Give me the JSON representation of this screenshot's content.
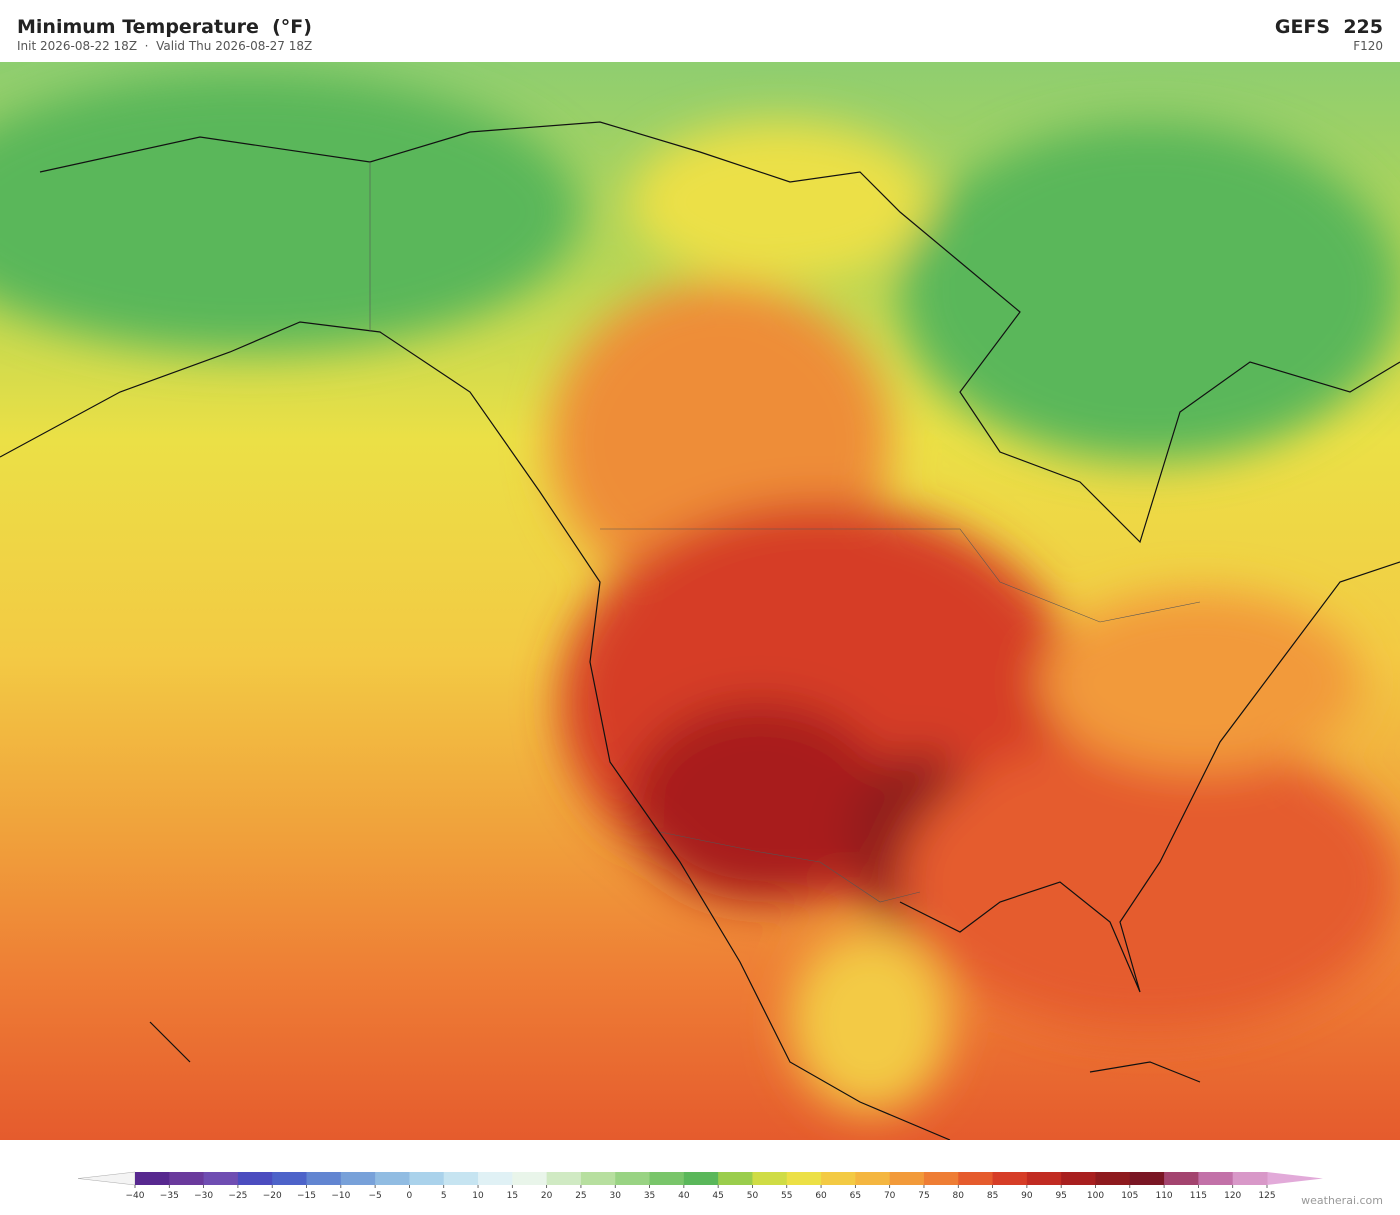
{
  "header": {
    "title": "Minimum Temperature  (°F)",
    "subtitle": "Init 2026-08-22 18Z  ·  Valid Thu 2026-08-27 18Z",
    "model": "GEFS  225",
    "forecast_hour": "F120"
  },
  "colorbar": {
    "ticks": [
      {
        "value": -40,
        "label": "−40"
      },
      {
        "value": -35,
        "label": "−35"
      },
      {
        "value": -30,
        "label": "−30"
      },
      {
        "value": -25,
        "label": "−25"
      },
      {
        "value": -20,
        "label": "−20"
      },
      {
        "value": -15,
        "label": "−15"
      },
      {
        "value": -10,
        "label": "−10"
      },
      {
        "value": -5,
        "label": "−5"
      },
      0,
      5,
      10,
      15,
      20,
      25,
      30,
      35,
      40,
      45,
      50,
      55,
      60,
      65,
      70,
      75,
      80,
      85,
      90,
      95,
      100,
      105,
      110,
      115,
      120,
      125
    ],
    "colors": [
      "#57288f",
      "#6a3a9c",
      "#6f4db2",
      "#4b4cbf",
      "#4d63c9",
      "#6285d1",
      "#78a1d9",
      "#91bce2",
      "#aad2eb",
      "#c6e4f1",
      "#e0f1f5",
      "#e9f5ea",
      "#d0eac3",
      "#b7df9f",
      "#99d383",
      "#79c56a",
      "#5ab75a",
      "#9acd4c",
      "#cfdc45",
      "#ece046",
      "#f3ca44",
      "#f4b640",
      "#f29a3a",
      "#ee7d35",
      "#e55b2d",
      "#d63d27",
      "#c12b22",
      "#a81f1f",
      "#8e1a1e",
      "#7a1624",
      "#a3446f",
      "#c271a8",
      "#d898c8"
    ],
    "under_color": "#f4f4f4",
    "over_color": "#e2aad9"
  },
  "watermark": "weatherai.com"
}
